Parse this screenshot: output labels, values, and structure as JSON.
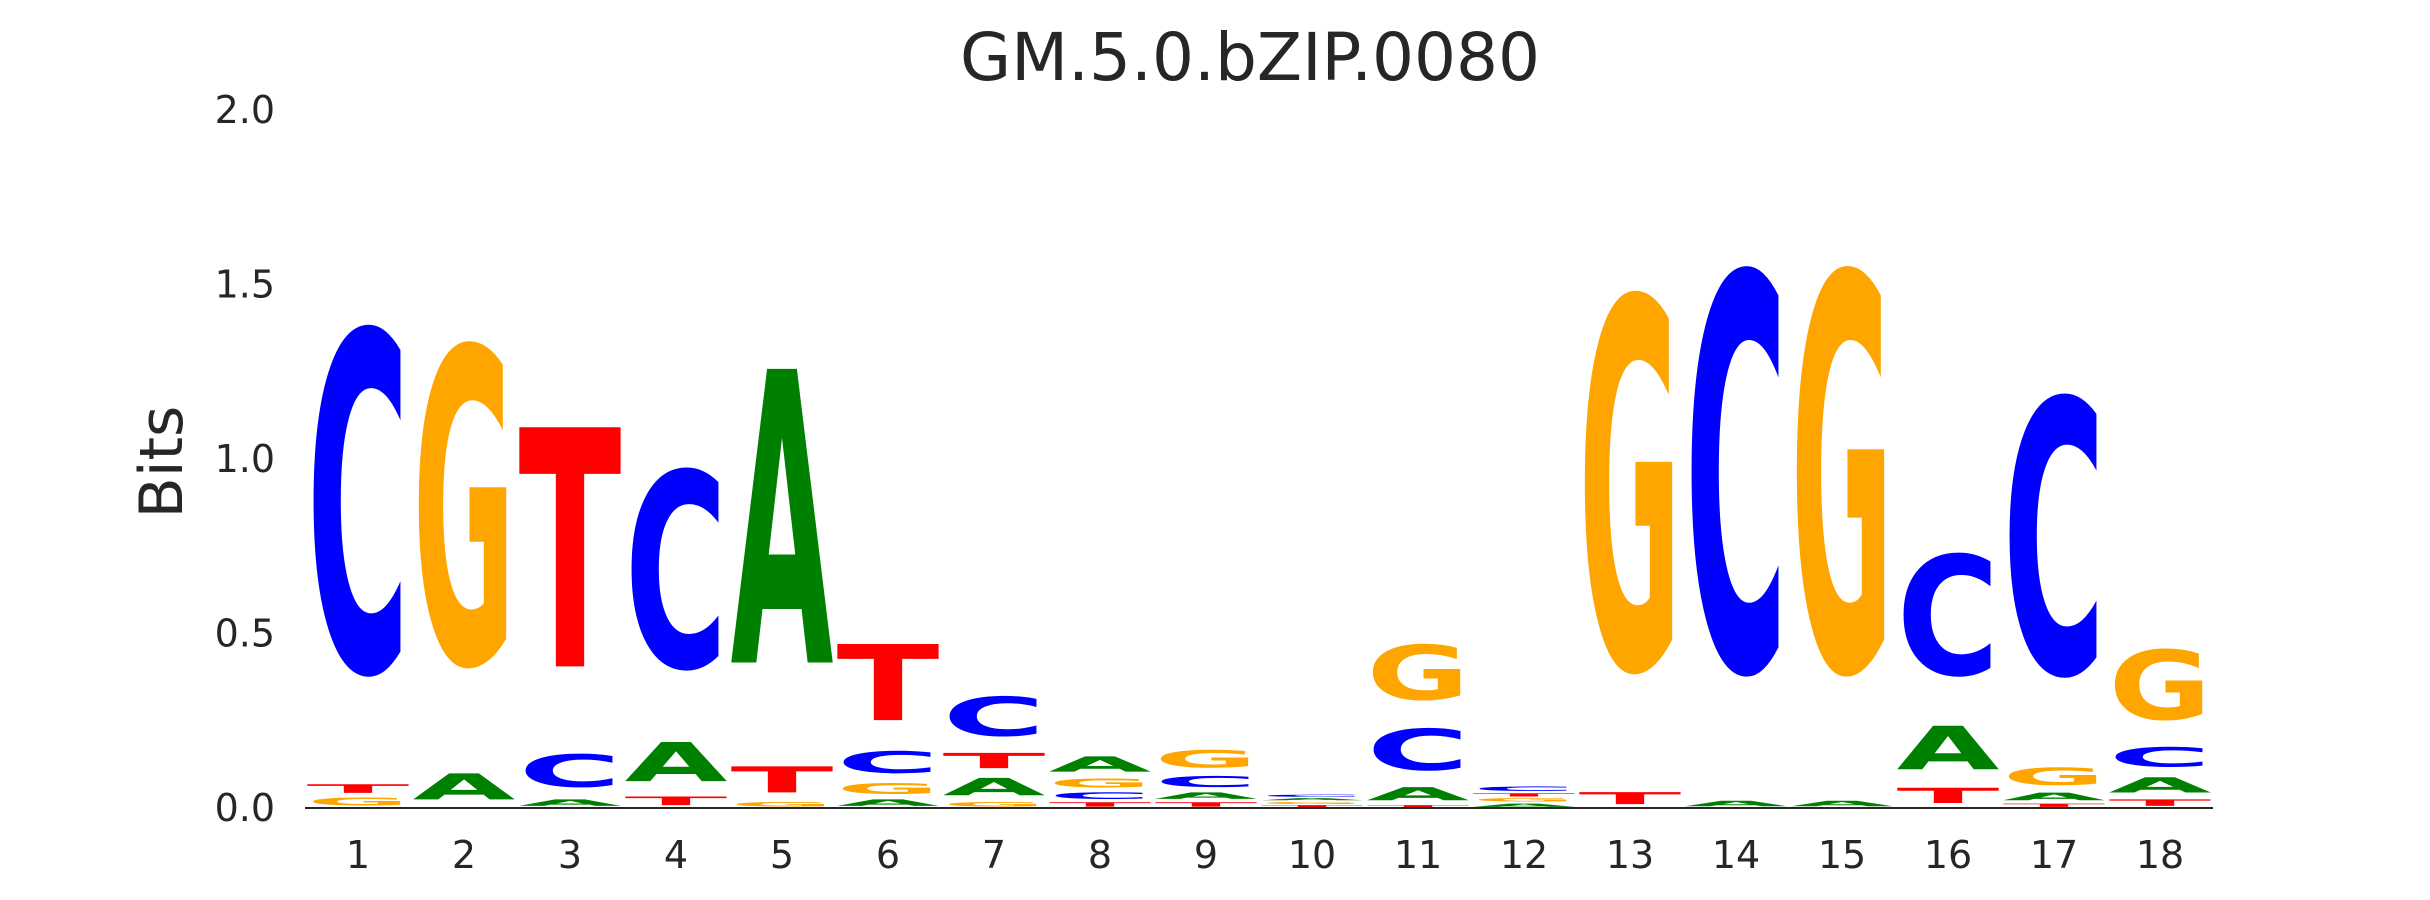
{
  "chart_data": {
    "type": "sequence-logo",
    "title": "GM.5.0.bZIP.0080",
    "ylabel": "Bits",
    "xlabel": "",
    "ylim": [
      0,
      2.0
    ],
    "yticks": [
      "0.0",
      "0.5",
      "1.0",
      "1.5",
      "2.0"
    ],
    "positions": [
      "1",
      "2",
      "3",
      "4",
      "5",
      "6",
      "7",
      "8",
      "9",
      "10",
      "11",
      "12",
      "13",
      "14",
      "15",
      "16",
      "17",
      "18"
    ],
    "colors": {
      "A": "#008000",
      "C": "#0000ff",
      "G": "#ffa500",
      "T": "#ff0000"
    },
    "grid": false,
    "columns": [
      [
        {
          "b": "G",
          "h": 0.035
        },
        {
          "b": "T",
          "h": 0.04
        },
        {
          "b": "C",
          "h": 1.56
        }
      ],
      [
        {
          "b": "A",
          "h": 0.12
        },
        {
          "b": "G",
          "h": 1.45
        }
      ],
      [
        {
          "b": "A",
          "h": 0.03
        },
        {
          "b": "C",
          "h": 0.15
        },
        {
          "b": "T",
          "h": 1.1
        }
      ],
      [
        {
          "b": "T",
          "h": 0.04
        },
        {
          "b": "A",
          "h": 0.18
        },
        {
          "b": "C",
          "h": 0.9
        }
      ],
      [
        {
          "b": "G",
          "h": 0.02
        },
        {
          "b": "T",
          "h": 0.12
        },
        {
          "b": "A",
          "h": 1.35
        }
      ],
      [
        {
          "b": "A",
          "h": 0.03
        },
        {
          "b": "G",
          "h": 0.05
        },
        {
          "b": "C",
          "h": 0.1
        },
        {
          "b": "T",
          "h": 0.35
        }
      ],
      [
        {
          "b": "G",
          "h": 0.02
        },
        {
          "b": "A",
          "h": 0.08
        },
        {
          "b": "T",
          "h": 0.07
        },
        {
          "b": "C",
          "h": 0.18
        }
      ],
      [
        {
          "b": "T",
          "h": 0.02
        },
        {
          "b": "C",
          "h": 0.03
        },
        {
          "b": "G",
          "h": 0.04
        },
        {
          "b": "A",
          "h": 0.07
        }
      ],
      [
        {
          "b": "T",
          "h": 0.02
        },
        {
          "b": "A",
          "h": 0.03
        },
        {
          "b": "C",
          "h": 0.05
        },
        {
          "b": "G",
          "h": 0.08
        }
      ],
      [
        {
          "b": "T",
          "h": 0.01
        },
        {
          "b": "G",
          "h": 0.01
        },
        {
          "b": "A",
          "h": 0.01
        },
        {
          "b": "C",
          "h": 0.01
        }
      ],
      [
        {
          "b": "T",
          "h": 0.01
        },
        {
          "b": "A",
          "h": 0.06
        },
        {
          "b": "C",
          "h": 0.19
        },
        {
          "b": "G",
          "h": 0.25
        }
      ],
      [
        {
          "b": "A",
          "h": 0.015
        },
        {
          "b": "G",
          "h": 0.015
        },
        {
          "b": "T",
          "h": 0.015
        },
        {
          "b": "C",
          "h": 0.02
        }
      ],
      [
        {
          "b": "T",
          "h": 0.055
        },
        {
          "b": "G",
          "h": 1.7
        }
      ],
      [
        {
          "b": "A",
          "h": 0.025
        },
        {
          "b": "C",
          "h": 1.82
        }
      ],
      [
        {
          "b": "A",
          "h": 0.025
        },
        {
          "b": "G",
          "h": 1.82
        }
      ],
      [
        {
          "b": "T",
          "h": 0.07
        },
        {
          "b": "A",
          "h": 0.2
        },
        {
          "b": "C",
          "h": 0.55
        }
      ],
      [
        {
          "b": "T",
          "h": 0.015
        },
        {
          "b": "A",
          "h": 0.035
        },
        {
          "b": "G",
          "h": 0.08
        },
        {
          "b": "C",
          "h": 1.26
        }
      ],
      [
        {
          "b": "T",
          "h": 0.03
        },
        {
          "b": "A",
          "h": 0.07
        },
        {
          "b": "C",
          "h": 0.09
        },
        {
          "b": "G",
          "h": 0.32
        }
      ]
    ]
  }
}
